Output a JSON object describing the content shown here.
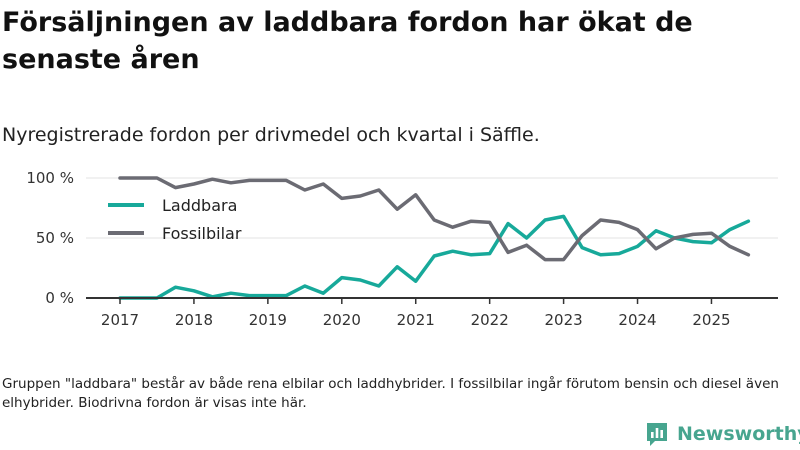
{
  "title": "Försäljningen av laddbara fordon har ökat de senaste åren",
  "subtitle": "Nyregistrerade fordon per drivmedel och kvartal i Säffle.",
  "caption": "Gruppen \"laddbara\" består av både rena elbilar och laddhybrider. I fossilbilar ingår förutom bensin och diesel även elhybrider. Biodrivna fordon är visas inte här.",
  "logo": {
    "text": "Newsworthy",
    "icon": "bar-chart-logo-icon"
  },
  "colors": {
    "laddbara": "#17a99a",
    "fossil": "#6b6b73",
    "axis": "#333333",
    "grid": "#e3e3e3",
    "logo": "#47a58f"
  },
  "chart_data": {
    "type": "line",
    "title": "Nyregistrerade fordon per drivmedel och kvartal i Säffle.",
    "xlabel": "",
    "ylabel": "",
    "ylim": [
      0,
      100
    ],
    "xlim": [
      2017.0,
      2025.9
    ],
    "y_ticks": [
      0,
      50,
      100
    ],
    "y_tick_labels": [
      "0 %",
      "50 %",
      "100 %"
    ],
    "x_ticks": [
      2017,
      2018,
      2019,
      2020,
      2021,
      2022,
      2023,
      2024,
      2025
    ],
    "x_tick_labels": [
      "2017",
      "2018",
      "2019",
      "2020",
      "2021",
      "2022",
      "2023",
      "2024",
      "2025"
    ],
    "legend_position": "top-left",
    "x": [
      2017.0,
      2017.25,
      2017.5,
      2017.75,
      2018.0,
      2018.25,
      2018.5,
      2018.75,
      2019.0,
      2019.25,
      2019.5,
      2019.75,
      2020.0,
      2020.25,
      2020.5,
      2020.75,
      2021.0,
      2021.25,
      2021.5,
      2021.75,
      2022.0,
      2022.25,
      2022.5,
      2022.75,
      2023.0,
      2023.25,
      2023.5,
      2023.75,
      2024.0,
      2024.25,
      2024.5,
      2024.75,
      2025.0,
      2025.25,
      2025.5
    ],
    "series": [
      {
        "name": "Laddbara",
        "color": "#17a99a",
        "values": [
          0,
          0,
          0,
          9,
          6,
          1,
          4,
          2,
          2,
          2,
          10,
          4,
          17,
          15,
          10,
          26,
          14,
          35,
          39,
          36,
          37,
          62,
          50,
          65,
          68,
          42,
          36,
          37,
          43,
          56,
          50,
          47,
          46,
          57,
          64
        ]
      },
      {
        "name": "Fossilbilar",
        "color": "#6b6b73",
        "values": [
          100,
          100,
          100,
          92,
          95,
          99,
          96,
          98,
          98,
          98,
          90,
          95,
          83,
          85,
          90,
          74,
          86,
          65,
          59,
          64,
          63,
          38,
          44,
          32,
          32,
          52,
          65,
          63,
          57,
          41,
          50,
          53,
          54,
          43,
          36
        ]
      }
    ]
  }
}
